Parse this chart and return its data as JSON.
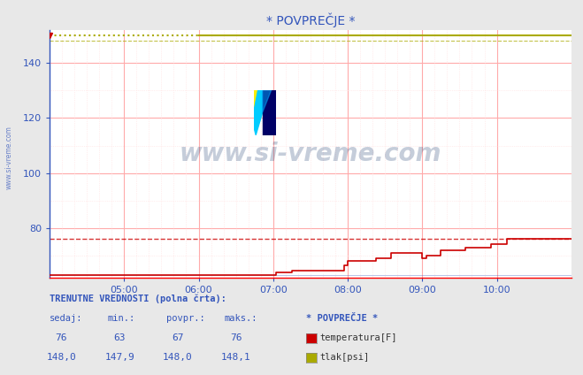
{
  "title": "* POVPREČJE *",
  "bg_color": "#e8e8e8",
  "plot_bg_color": "#ffffff",
  "xlim_min": 0,
  "xlim_max": 420,
  "ylim_min": 62,
  "ylim_max": 152,
  "yticks": [
    80,
    100,
    120,
    140
  ],
  "xtick_labels": [
    "05:00",
    "06:00",
    "07:00",
    "08:00",
    "09:00",
    "10:00"
  ],
  "xtick_positions": [
    60,
    120,
    180,
    240,
    300,
    360
  ],
  "grid_color_major": "#ffaaaa",
  "grid_color_minor": "#ffdddd",
  "watermark": "www.si-vreme.com",
  "watermark_color": "#1a3a6e",
  "side_label": "www.si-vreme.com",
  "temp_color": "#cc0000",
  "tlak_color": "#aaaa00",
  "temp_avg": 76,
  "tlak_avg": 148.0,
  "temp_povpr": 67,
  "tlak_value": 150.0,
  "bottom_title": "TRENUTNE VREDNOSTI (polna črta):",
  "col_headers": [
    "sedaj:",
    "min.:",
    "povpr.:",
    "maks.:"
  ],
  "row1": [
    "76",
    "63",
    "67",
    "76"
  ],
  "row2": [
    "148,0",
    "147,9",
    "148,0",
    "148,1"
  ],
  "label_temp": "temperatura[F]",
  "label_tlak": "tlak[psi]",
  "legend_title": "* POVPREČJE *"
}
